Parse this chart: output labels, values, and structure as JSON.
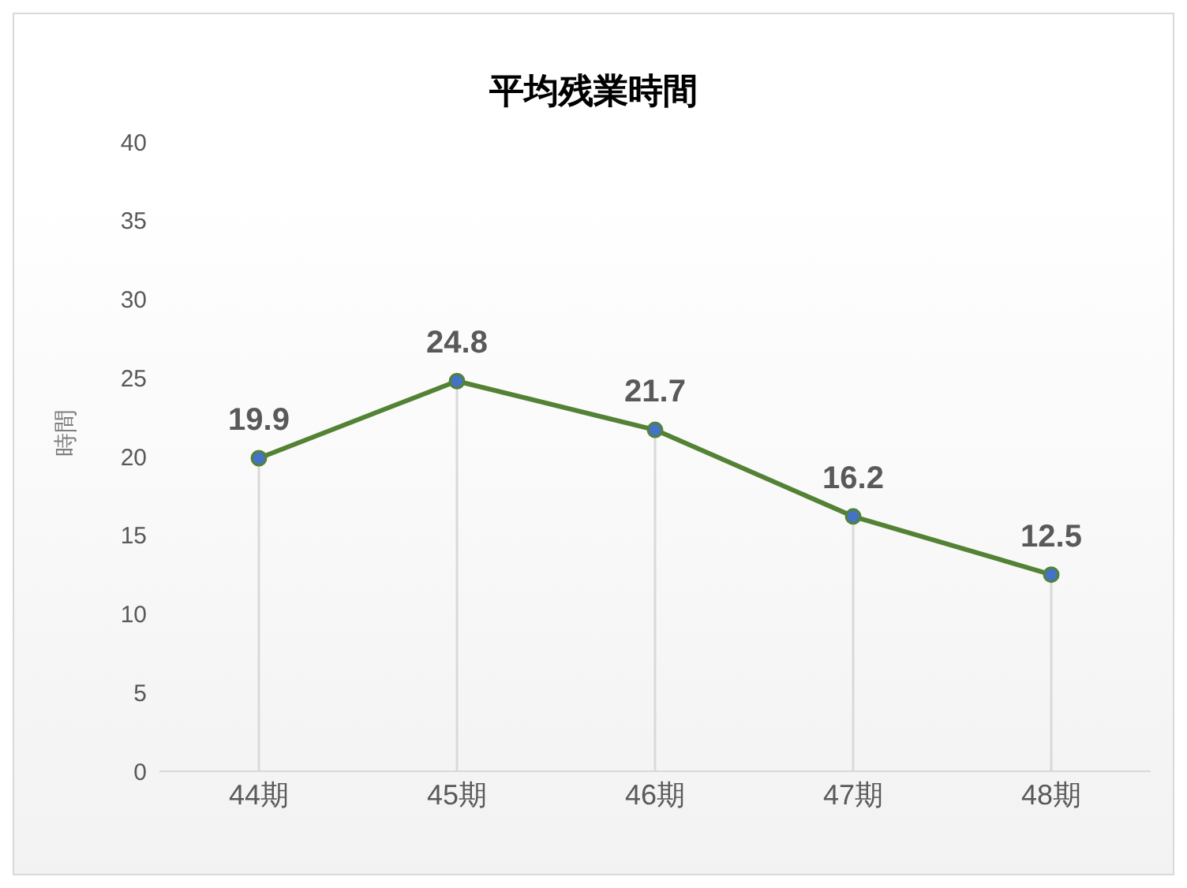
{
  "chart_data": {
    "type": "line",
    "title": "平均残業時間",
    "ylabel": "時間",
    "categories": [
      "44期",
      "45期",
      "46期",
      "47期",
      "48期"
    ],
    "series": [
      {
        "color": "#548235",
        "values": [
          19.9,
          24.8,
          21.7,
          16.2,
          12.5
        ]
      }
    ],
    "ylim": [
      0,
      40
    ],
    "yticks": [
      0,
      5,
      10,
      15,
      20,
      25,
      30,
      35,
      40
    ],
    "marker": "circle",
    "line_style": "solid",
    "data_labels": true
  }
}
